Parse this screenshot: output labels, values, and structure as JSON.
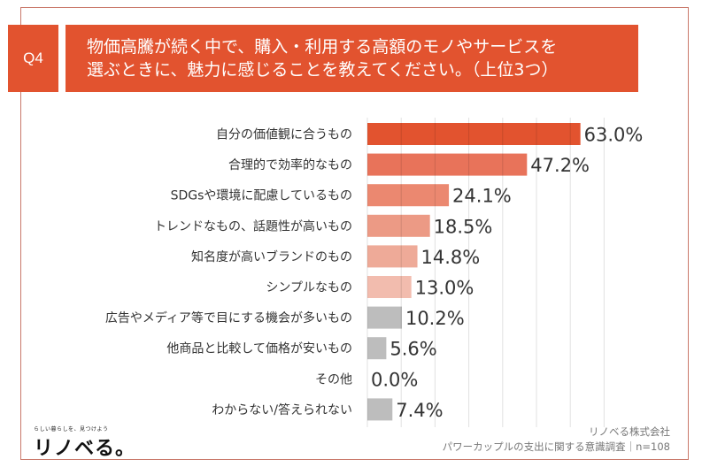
{
  "header": {
    "question_no": "Q4",
    "title_lines": [
      "物価高騰が続く中で、購入・利用する高額のモノやサービスを",
      "選ぶときに、魅力に感じることを教えてください。（上位3つ）"
    ]
  },
  "chart_data": {
    "type": "bar",
    "orientation": "horizontal",
    "title": "物価高騰が続く中で、購入・利用する高額のモノやサービスを選ぶときに、魅力に感じることを教えてください。（上位3つ）",
    "xlabel": "",
    "ylabel": "",
    "unit": "%",
    "xlim": [
      0,
      70
    ],
    "grid": true,
    "gridline_step": 5,
    "categories": [
      "自分の価値観に合うもの",
      "合理的で効率的なもの",
      "SDGsや環境に配慮しているもの",
      "トレンドなもの、話題性が高いもの",
      "知名度が高いブランドのもの",
      "シンプルなもの",
      "広告やメディア等で目にする機会が多いもの",
      "他商品と比較して価格が安いもの",
      "その他",
      "わからない/答えられない"
    ],
    "values": [
      63.0,
      47.2,
      24.1,
      18.5,
      14.8,
      13.0,
      10.2,
      5.6,
      0.0,
      7.4
    ],
    "value_labels": [
      "63.0%",
      "47.2%",
      "24.1%",
      "18.5%",
      "14.8%",
      "13.0%",
      "10.2%",
      "5.6%",
      "0.0%",
      "7.4%"
    ],
    "bar_colors": [
      "#e2532f",
      "#e8735a",
      "#eb8870",
      "#ec9a85",
      "#eeaa98",
      "#f2bcae",
      "#bdbdbd",
      "#bdbdbd",
      "#bdbdbd",
      "#bdbdbd"
    ]
  },
  "brand": {
    "tagline": "らしい暮らしを、見つけよう",
    "logo_text": "リノベる。"
  },
  "footer": {
    "company": "リノベる株式会社",
    "survey": "パワーカップルの支出に関する意識調査｜n=108"
  }
}
